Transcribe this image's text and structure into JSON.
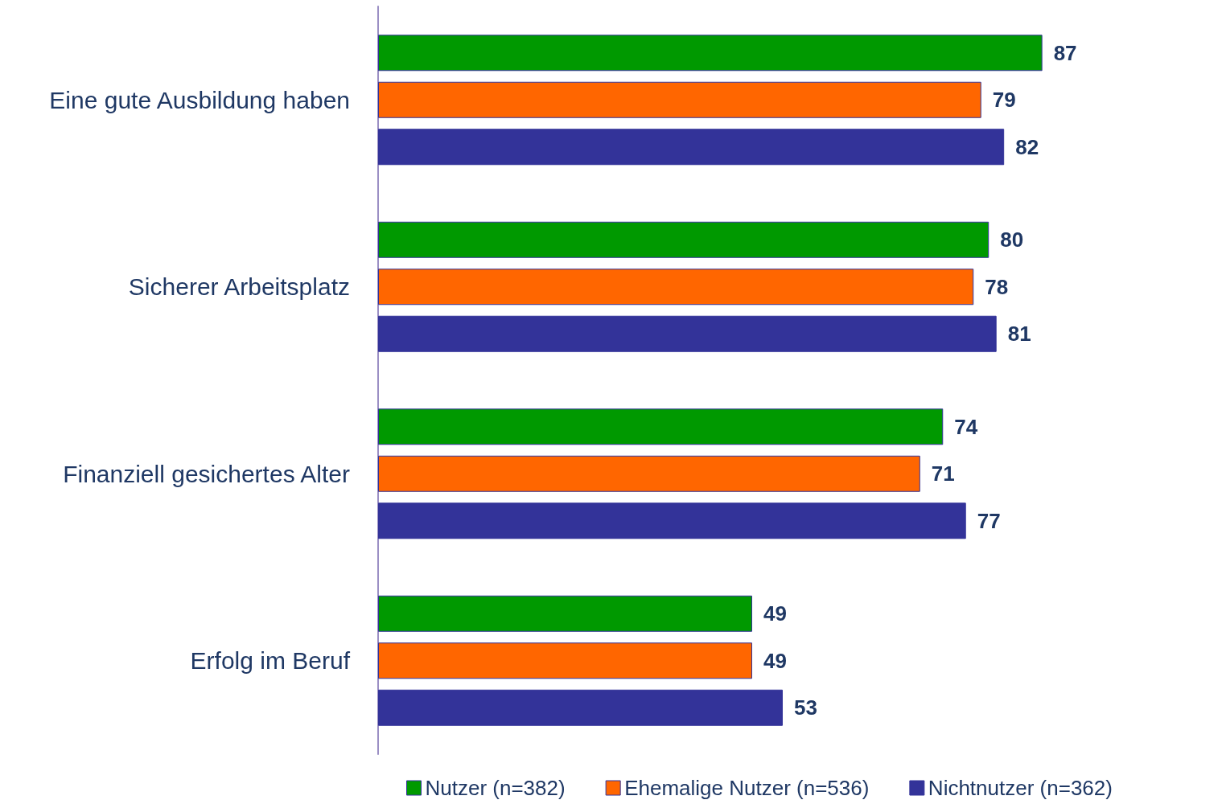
{
  "chart_data": {
    "type": "bar",
    "orientation": "horizontal",
    "categories": [
      "Eine gute Ausbildung haben",
      "Sicherer Arbeitsplatz",
      "Finanziell gesichertes Alter",
      "Erfolg im Beruf"
    ],
    "series": [
      {
        "name": "Nutzer (n=382)",
        "color": "#009900",
        "values": [
          87,
          80,
          74,
          49
        ]
      },
      {
        "name": "Ehemalige Nutzer (n=536)",
        "color": "#ff6600",
        "values": [
          79,
          78,
          71,
          49
        ]
      },
      {
        "name": "Nichtnutzer (n=362)",
        "color": "#333399",
        "values": [
          82,
          81,
          77,
          53
        ]
      }
    ],
    "data_labels": true,
    "legend": "bottom"
  }
}
